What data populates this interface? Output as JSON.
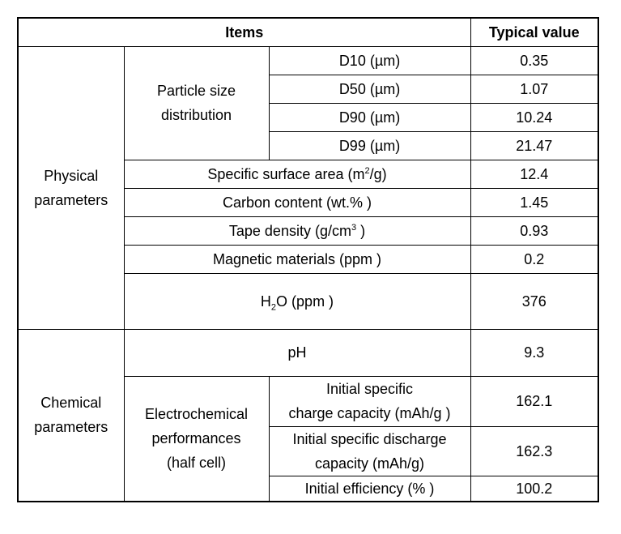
{
  "header": {
    "items": "Items",
    "typical_value": "Typical value"
  },
  "physical": {
    "group_line1": "Physical",
    "group_line2": "parameters",
    "psd": {
      "label_line1": "Particle size",
      "label_line2": "distribution",
      "rows": [
        {
          "name": "D10 (µm)",
          "value": "0.35"
        },
        {
          "name": "D50 (µm)",
          "value": "1.07"
        },
        {
          "name": "D90 (µm)",
          "value": "10.24"
        },
        {
          "name": "D99 (µm)",
          "value": "21.47"
        }
      ]
    },
    "ssa": {
      "pre": "Specific surface area (m",
      "sup": "2",
      "post": "/g)",
      "value": "12.4"
    },
    "carbon": {
      "name": "Carbon content (wt.% )",
      "value": "1.45"
    },
    "tape": {
      "pre": "Tape density (g/cm",
      "sup": "3",
      "post": " )",
      "value": "0.93"
    },
    "magnetic": {
      "name": "Magnetic materials (ppm )",
      "value": "0.2"
    },
    "h2o": {
      "pre": "H",
      "sub": "2",
      "post": "O (ppm )",
      "value": "376"
    }
  },
  "chemical": {
    "group_line1": "Chemical",
    "group_line2": "parameters",
    "ph": {
      "name": "pH",
      "value": "9.3"
    },
    "electro": {
      "label_line1": "Electrochemical",
      "label_line2": "performances",
      "label_line3": "(half cell)",
      "charge": {
        "line1": "Initial specific",
        "line2": "charge capacity (mAh/g )",
        "value": "162.1"
      },
      "discharge": {
        "line1": "Initial specific discharge",
        "line2": "capacity (mAh/g)",
        "value": "162.3"
      },
      "efficiency": {
        "name": "Initial efficiency (% )",
        "value": "100.2"
      }
    }
  }
}
